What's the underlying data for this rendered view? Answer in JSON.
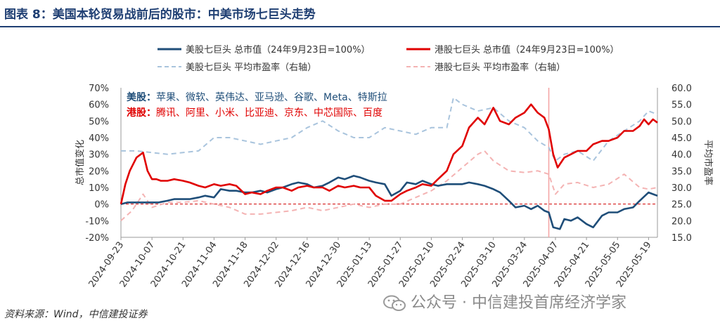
{
  "header": {
    "title": "图表 8：美国本轮贸易战前后的股市：中美市场七巨头走势"
  },
  "footer": {
    "source": "资料来源：Wind，中信建投证券",
    "watermark": "公众号 · 中信建投首席经济学家"
  },
  "colors": {
    "us_total": "#1f4e79",
    "hk_total": "#e00000",
    "us_pe": "#a9c4dd",
    "hk_pe": "#f4b3b3",
    "title": "#1f3f73",
    "vline": "#f4a6a6"
  },
  "chart_data": {
    "type": "line",
    "title": "美国本轮贸易战前后的股市：中美市场七巨头走势",
    "ylabel_left": "总市值变化",
    "ylabel_right": "平均市盈率",
    "ylim_left": [
      -0.2,
      0.7
    ],
    "ylim_right": [
      15,
      60
    ],
    "left_ticks": [
      "70%",
      "60%",
      "50%",
      "40%",
      "30%",
      "20%",
      "10%",
      "0%",
      "-10%",
      "-20%"
    ],
    "right_ticks": [
      "60.0",
      "55.0",
      "50.0",
      "45.0",
      "40.0",
      "35.0",
      "30.0",
      "25.0",
      "20.0",
      "15.0"
    ],
    "x_ticks": [
      "2024-09-23",
      "2024-10-07",
      "2024-10-21",
      "2024-11-04",
      "2024-11-18",
      "2024-12-02",
      "2024-12-16",
      "2024-12-30",
      "2025-01-13",
      "2025-01-27",
      "2025-02-10",
      "2025-02-24",
      "2025-03-10",
      "2025-03-24",
      "2025-04-07",
      "2025-04-21",
      "2025-05-05",
      "2025-05-19"
    ],
    "x_range_days": [
      0,
      242
    ],
    "reference_line_y": 0,
    "vertical_marker_day": 193,
    "annotations": {
      "us_prefix": "美股：",
      "us_members": "苹果、微软、英伟达、亚马逊、谷歌、Meta、特斯拉",
      "hk_prefix": "港股：",
      "hk_members": "腾讯、阿里、小米、比亚迪、京东、中芯国际、百度"
    },
    "series": [
      {
        "name": "美股七巨头 总市值（24年9月23日=100%）",
        "axis": "left",
        "style": "solid",
        "days": [
          0,
          3,
          7,
          10,
          14,
          17,
          21,
          24,
          28,
          31,
          35,
          38,
          42,
          45,
          49,
          52,
          56,
          59,
          63,
          66,
          70,
          73,
          77,
          80,
          84,
          87,
          91,
          94,
          98,
          101,
          105,
          108,
          112,
          115,
          119,
          122,
          126,
          129,
          133,
          136,
          140,
          143,
          147,
          150,
          154,
          157,
          161,
          164,
          168,
          171,
          175,
          178,
          182,
          185,
          188,
          191,
          193,
          195,
          198,
          200,
          203,
          206,
          210,
          213,
          217,
          220,
          224,
          227,
          231,
          234,
          238,
          240,
          242
        ],
        "values": [
          0,
          0.01,
          0.01,
          0.01,
          0.01,
          0.01,
          0.02,
          0.03,
          0.03,
          0.03,
          0.04,
          0.05,
          0.04,
          0.09,
          0.08,
          0.08,
          0.07,
          0.07,
          0.08,
          0.07,
          0.09,
          0.1,
          0.12,
          0.13,
          0.12,
          0.1,
          0.11,
          0.13,
          0.16,
          0.15,
          0.17,
          0.16,
          0.14,
          0.13,
          0.12,
          0.05,
          0.08,
          0.13,
          0.12,
          0.14,
          0.12,
          0.11,
          0.12,
          0.12,
          0.12,
          0.13,
          0.12,
          0.11,
          0.09,
          0.07,
          0.02,
          -0.02,
          -0.01,
          -0.03,
          -0.01,
          -0.04,
          -0.05,
          -0.14,
          -0.15,
          -0.09,
          -0.1,
          -0.08,
          -0.12,
          -0.14,
          -0.07,
          -0.05,
          -0.05,
          -0.03,
          -0.02,
          0.02,
          0.07,
          0.06,
          0.05
        ]
      },
      {
        "name": "港股七巨头 总市值（24年9月23日=100%）",
        "axis": "left",
        "style": "solid",
        "days": [
          0,
          2,
          4,
          7,
          10,
          12,
          14,
          16,
          18,
          21,
          24,
          28,
          31,
          35,
          38,
          42,
          45,
          49,
          52,
          56,
          59,
          63,
          66,
          70,
          73,
          77,
          80,
          84,
          87,
          91,
          94,
          98,
          101,
          105,
          108,
          112,
          115,
          119,
          122,
          126,
          129,
          133,
          136,
          140,
          143,
          147,
          150,
          154,
          157,
          161,
          164,
          168,
          171,
          175,
          178,
          182,
          185,
          188,
          191,
          193,
          195,
          197,
          200,
          203,
          206,
          210,
          213,
          217,
          220,
          224,
          227,
          231,
          234,
          236,
          238,
          240,
          242
        ],
        "values": [
          0,
          0.12,
          0.2,
          0.28,
          0.31,
          0.2,
          0.15,
          0.15,
          0.14,
          0.14,
          0.15,
          0.14,
          0.13,
          0.11,
          0.1,
          0.12,
          0.11,
          0.12,
          0.11,
          0.06,
          0.07,
          0.06,
          0.08,
          0.1,
          0.1,
          0.08,
          0.1,
          0.11,
          0.1,
          0.1,
          0.08,
          0.11,
          0.1,
          0.11,
          0.1,
          0.1,
          0.05,
          0.02,
          0.02,
          0.06,
          0.08,
          0.1,
          0.12,
          0.11,
          0.15,
          0.2,
          0.3,
          0.35,
          0.46,
          0.52,
          0.48,
          0.58,
          0.5,
          0.48,
          0.52,
          0.55,
          0.6,
          0.55,
          0.52,
          0.45,
          0.3,
          0.22,
          0.28,
          0.3,
          0.32,
          0.32,
          0.36,
          0.38,
          0.38,
          0.4,
          0.44,
          0.44,
          0.47,
          0.51,
          0.48,
          0.51,
          0.49
        ]
      },
      {
        "name": "美股七巨头 平均市盈率（右轴）",
        "axis": "right",
        "style": "dashed",
        "days": [
          0,
          7,
          14,
          21,
          28,
          35,
          42,
          49,
          56,
          63,
          70,
          77,
          84,
          91,
          98,
          105,
          112,
          119,
          126,
          133,
          140,
          147,
          150,
          154,
          161,
          168,
          175,
          182,
          188,
          193,
          196,
          200,
          206,
          213,
          220,
          227,
          234,
          238,
          242
        ],
        "values": [
          41,
          41,
          40.5,
          40,
          40.5,
          41,
          45,
          45,
          44,
          43,
          44,
          45,
          48,
          50,
          47,
          45,
          45,
          48,
          47,
          46,
          48,
          48,
          57,
          55,
          53,
          54,
          50,
          48,
          44,
          42,
          38,
          40,
          41,
          38,
          44,
          47,
          50,
          53,
          52
        ]
      },
      {
        "name": "港股七巨头 平均市盈率（右轴）",
        "axis": "right",
        "style": "dashed",
        "days": [
          0,
          5,
          10,
          14,
          21,
          28,
          35,
          42,
          49,
          56,
          63,
          70,
          77,
          84,
          91,
          98,
          105,
          112,
          119,
          126,
          133,
          140,
          147,
          154,
          161,
          164,
          168,
          175,
          182,
          188,
          193,
          196,
          200,
          206,
          213,
          220,
          227,
          234,
          238,
          242
        ],
        "values": [
          20,
          23,
          28,
          24,
          25.5,
          25.5,
          26,
          25,
          24,
          22,
          22,
          22.5,
          23,
          24,
          23,
          24,
          25,
          24,
          25,
          25,
          27,
          29,
          32,
          36,
          40,
          41,
          38,
          35,
          34.5,
          35,
          34,
          28,
          31,
          31.5,
          30,
          31,
          34,
          30,
          29.5,
          30
        ]
      }
    ],
    "legend": {
      "us_total": "美股七巨头 总市值（24年9月23日=100%）",
      "hk_total": "港股七巨头 总市值（24年9月23日=100%）",
      "us_pe": "美股七巨头 平均市盈率（右轴）",
      "hk_pe": "港股七巨头 平均市盈率（右轴）"
    }
  }
}
